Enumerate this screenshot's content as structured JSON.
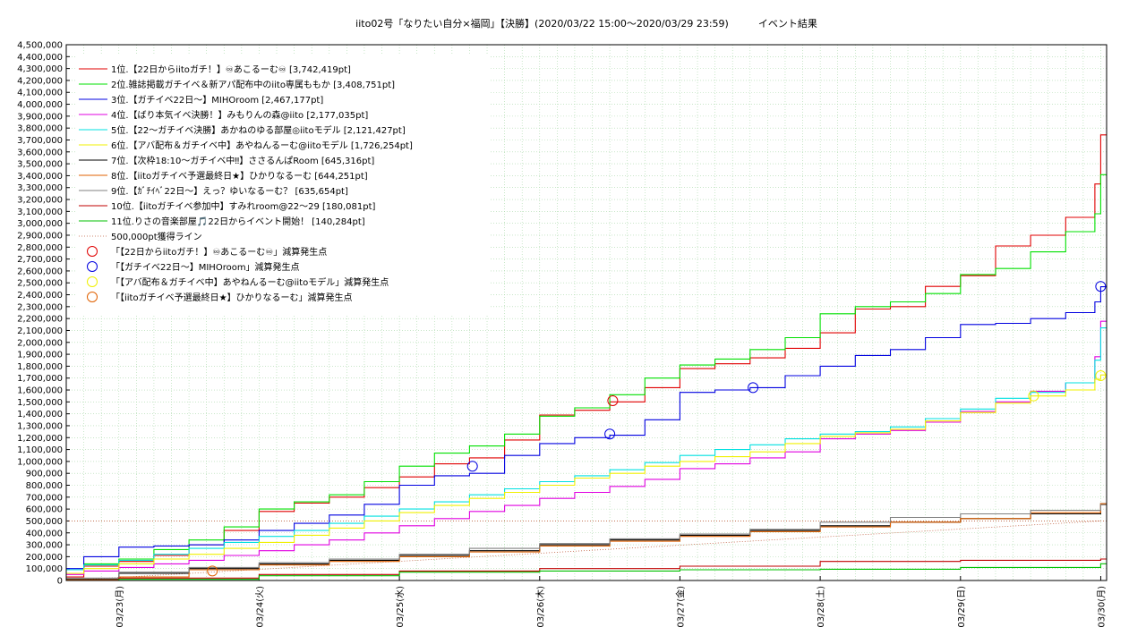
{
  "chart_data": {
    "type": "line",
    "title": "iito02号「なりたい自分×福岡」【決勝】(2020/03/22 15:00〜2020/03/29 23:59)　　　イベント結果",
    "xlabel": "",
    "ylabel": "",
    "ylim": [
      0,
      4500000
    ],
    "ytick_step": 100000,
    "yticks": [
      "0",
      "100,000",
      "200,000",
      "300,000",
      "400,000",
      "500,000",
      "600,000",
      "700,000",
      "800,000",
      "900,000",
      "1,000,000",
      "1,100,000",
      "1,200,000",
      "1,300,000",
      "1,400,000",
      "1,500,000",
      "1,600,000",
      "1,700,000",
      "1,800,000",
      "1,900,000",
      "2,000,000",
      "2,100,000",
      "2,200,000",
      "2,300,000",
      "2,400,000",
      "2,500,000",
      "2,600,000",
      "2,700,000",
      "2,800,000",
      "2,900,000",
      "3,000,000",
      "3,100,000",
      "3,200,000",
      "3,300,000",
      "3,400,000",
      "3,500,000",
      "3,600,000",
      "3,700,000",
      "3,800,000",
      "3,900,000",
      "4,000,000",
      "4,100,000",
      "4,200,000",
      "4,300,000",
      "4,400,000",
      "4,500,000"
    ],
    "xlim": [
      "2020-03-22T15:00",
      "2020-03-30T01:00"
    ],
    "xticks": [
      {
        "t": "2020-03-23T00:00",
        "label": "03/23(月)"
      },
      {
        "t": "2020-03-24T00:00",
        "label": "03/24(火)"
      },
      {
        "t": "2020-03-25T00:00",
        "label": "03/25(水)"
      },
      {
        "t": "2020-03-26T00:00",
        "label": "03/26(木)"
      },
      {
        "t": "2020-03-27T00:00",
        "label": "03/27(金)"
      },
      {
        "t": "2020-03-28T00:00",
        "label": "03/28(土)"
      },
      {
        "t": "2020-03-29T00:00",
        "label": "03/29(日)"
      },
      {
        "t": "2020-03-30T00:00",
        "label": "03/30(月)"
      }
    ],
    "grid": true,
    "legend_position": "top-left",
    "series": [
      {
        "name": "1位.【22日からiitoガチ！】♾あこるーむ♾ [3,742,419pt]",
        "color": "#e00000",
        "x": [
          "2020-03-22T15:00",
          "2020-03-22T18:00",
          "2020-03-23T00:00",
          "2020-03-23T06:00",
          "2020-03-23T12:00",
          "2020-03-23T18:00",
          "2020-03-24T00:00",
          "2020-03-24T06:00",
          "2020-03-24T12:00",
          "2020-03-24T18:00",
          "2020-03-25T00:00",
          "2020-03-25T06:00",
          "2020-03-25T12:00",
          "2020-03-25T18:00",
          "2020-03-26T00:00",
          "2020-03-26T06:00",
          "2020-03-26T12:00",
          "2020-03-26T18:00",
          "2020-03-27T00:00",
          "2020-03-27T06:00",
          "2020-03-27T12:00",
          "2020-03-27T18:00",
          "2020-03-28T00:00",
          "2020-03-28T06:00",
          "2020-03-28T12:00",
          "2020-03-28T18:00",
          "2020-03-29T00:00",
          "2020-03-29T06:00",
          "2020-03-29T12:00",
          "2020-03-29T18:00",
          "2020-03-29T23:00",
          "2020-03-29T23:59",
          "2020-03-30T01:00"
        ],
        "y": [
          30000,
          120000,
          160000,
          210000,
          300000,
          420000,
          580000,
          650000,
          700000,
          780000,
          870000,
          980000,
          1030000,
          1180000,
          1390000,
          1430000,
          1500000,
          1620000,
          1780000,
          1820000,
          1870000,
          1950000,
          2080000,
          2280000,
          2300000,
          2470000,
          2560000,
          2810000,
          2900000,
          3050000,
          3330000,
          3742419,
          3742419
        ]
      },
      {
        "name": "2位.雑誌掲載ガチイベ＆新アパ配布中のiito専属ももか [3,408,751pt]",
        "color": "#00e000",
        "x": [
          "2020-03-22T15:00",
          "2020-03-22T18:00",
          "2020-03-23T00:00",
          "2020-03-23T06:00",
          "2020-03-23T12:00",
          "2020-03-23T18:00",
          "2020-03-24T00:00",
          "2020-03-24T06:00",
          "2020-03-24T12:00",
          "2020-03-24T18:00",
          "2020-03-25T00:00",
          "2020-03-25T06:00",
          "2020-03-25T12:00",
          "2020-03-25T18:00",
          "2020-03-26T00:00",
          "2020-03-26T06:00",
          "2020-03-26T12:00",
          "2020-03-26T18:00",
          "2020-03-27T00:00",
          "2020-03-27T06:00",
          "2020-03-27T12:00",
          "2020-03-27T18:00",
          "2020-03-28T00:00",
          "2020-03-28T06:00",
          "2020-03-28T12:00",
          "2020-03-28T18:00",
          "2020-03-29T00:00",
          "2020-03-29T06:00",
          "2020-03-29T12:00",
          "2020-03-29T18:00",
          "2020-03-29T23:00",
          "2020-03-29T23:59",
          "2020-03-30T01:00"
        ],
        "y": [
          90000,
          140000,
          180000,
          260000,
          340000,
          450000,
          600000,
          660000,
          720000,
          830000,
          960000,
          1070000,
          1130000,
          1230000,
          1380000,
          1450000,
          1560000,
          1700000,
          1810000,
          1860000,
          1940000,
          2040000,
          2240000,
          2300000,
          2340000,
          2410000,
          2570000,
          2620000,
          2760000,
          2930000,
          3080000,
          3408751,
          3408751
        ]
      },
      {
        "name": "3位.【ガチイベ22日〜】MIHOroom [2,467,177pt]",
        "color": "#0000e0",
        "x": [
          "2020-03-22T15:00",
          "2020-03-22T18:00",
          "2020-03-23T00:00",
          "2020-03-23T06:00",
          "2020-03-23T12:00",
          "2020-03-23T18:00",
          "2020-03-24T00:00",
          "2020-03-24T06:00",
          "2020-03-24T12:00",
          "2020-03-24T18:00",
          "2020-03-25T00:00",
          "2020-03-25T06:00",
          "2020-03-25T12:00",
          "2020-03-25T18:00",
          "2020-03-26T00:00",
          "2020-03-26T06:00",
          "2020-03-26T12:00",
          "2020-03-26T18:00",
          "2020-03-27T00:00",
          "2020-03-27T06:00",
          "2020-03-27T12:00",
          "2020-03-27T18:00",
          "2020-03-28T00:00",
          "2020-03-28T06:00",
          "2020-03-28T12:00",
          "2020-03-28T18:00",
          "2020-03-29T00:00",
          "2020-03-29T06:00",
          "2020-03-29T12:00",
          "2020-03-29T18:00",
          "2020-03-29T23:00",
          "2020-03-29T23:59",
          "2020-03-30T01:00"
        ],
        "y": [
          100000,
          200000,
          280000,
          290000,
          300000,
          340000,
          420000,
          480000,
          550000,
          640000,
          800000,
          880000,
          900000,
          1050000,
          1150000,
          1200000,
          1220000,
          1350000,
          1580000,
          1600000,
          1620000,
          1720000,
          1800000,
          1890000,
          1940000,
          2040000,
          2150000,
          2160000,
          2200000,
          2250000,
          2340000,
          2467177,
          2467177
        ]
      },
      {
        "name": "4位.【ばり本気イベ決勝！】みもりんの森@iito [2,177,035pt]",
        "color": "#e000e0",
        "x": [
          "2020-03-22T15:00",
          "2020-03-22T18:00",
          "2020-03-23T00:00",
          "2020-03-23T06:00",
          "2020-03-23T12:00",
          "2020-03-23T18:00",
          "2020-03-24T00:00",
          "2020-03-24T06:00",
          "2020-03-24T12:00",
          "2020-03-24T18:00",
          "2020-03-25T00:00",
          "2020-03-25T06:00",
          "2020-03-25T12:00",
          "2020-03-25T18:00",
          "2020-03-26T00:00",
          "2020-03-26T06:00",
          "2020-03-26T12:00",
          "2020-03-26T18:00",
          "2020-03-27T00:00",
          "2020-03-27T06:00",
          "2020-03-27T12:00",
          "2020-03-27T18:00",
          "2020-03-28T00:00",
          "2020-03-28T06:00",
          "2020-03-28T12:00",
          "2020-03-28T18:00",
          "2020-03-29T00:00",
          "2020-03-29T06:00",
          "2020-03-29T12:00",
          "2020-03-29T18:00",
          "2020-03-29T23:00",
          "2020-03-29T23:59",
          "2020-03-30T01:00"
        ],
        "y": [
          50000,
          80000,
          110000,
          140000,
          170000,
          210000,
          250000,
          300000,
          340000,
          400000,
          460000,
          520000,
          580000,
          630000,
          690000,
          740000,
          790000,
          850000,
          940000,
          980000,
          1030000,
          1080000,
          1190000,
          1230000,
          1260000,
          1330000,
          1420000,
          1500000,
          1590000,
          1660000,
          1880000,
          2177035,
          2177035
        ]
      },
      {
        "name": "5位.【22〜ガチイベ決勝】あかねのゆる部屋◎iitoモデル [2,121,427pt]",
        "color": "#00e0e0",
        "x": [
          "2020-03-22T15:00",
          "2020-03-22T18:00",
          "2020-03-23T00:00",
          "2020-03-23T06:00",
          "2020-03-23T12:00",
          "2020-03-23T18:00",
          "2020-03-24T00:00",
          "2020-03-24T06:00",
          "2020-03-24T12:00",
          "2020-03-24T18:00",
          "2020-03-25T00:00",
          "2020-03-25T06:00",
          "2020-03-25T12:00",
          "2020-03-25T18:00",
          "2020-03-26T00:00",
          "2020-03-26T06:00",
          "2020-03-26T12:00",
          "2020-03-26T18:00",
          "2020-03-27T00:00",
          "2020-03-27T06:00",
          "2020-03-27T12:00",
          "2020-03-27T18:00",
          "2020-03-28T00:00",
          "2020-03-28T06:00",
          "2020-03-28T12:00",
          "2020-03-28T18:00",
          "2020-03-29T00:00",
          "2020-03-29T06:00",
          "2020-03-29T12:00",
          "2020-03-29T18:00",
          "2020-03-29T23:00",
          "2020-03-29T23:59",
          "2020-03-30T01:00"
        ],
        "y": [
          90000,
          130000,
          170000,
          220000,
          270000,
          320000,
          370000,
          420000,
          480000,
          540000,
          600000,
          660000,
          720000,
          770000,
          830000,
          880000,
          930000,
          990000,
          1050000,
          1100000,
          1140000,
          1190000,
          1230000,
          1250000,
          1290000,
          1360000,
          1440000,
          1530000,
          1580000,
          1660000,
          1850000,
          2121427,
          2121427
        ]
      },
      {
        "name": "6位.【アバ配布＆ガチイベ中】あやねんるーむ@iitoモデル [1,726,254pt]",
        "color": "#f0f000",
        "x": [
          "2020-03-22T15:00",
          "2020-03-22T18:00",
          "2020-03-23T00:00",
          "2020-03-23T06:00",
          "2020-03-23T12:00",
          "2020-03-23T18:00",
          "2020-03-24T00:00",
          "2020-03-24T06:00",
          "2020-03-24T12:00",
          "2020-03-24T18:00",
          "2020-03-25T00:00",
          "2020-03-25T06:00",
          "2020-03-25T12:00",
          "2020-03-25T18:00",
          "2020-03-26T00:00",
          "2020-03-26T06:00",
          "2020-03-26T12:00",
          "2020-03-26T18:00",
          "2020-03-27T00:00",
          "2020-03-27T06:00",
          "2020-03-27T12:00",
          "2020-03-27T18:00",
          "2020-03-28T00:00",
          "2020-03-28T06:00",
          "2020-03-28T12:00",
          "2020-03-28T18:00",
          "2020-03-29T00:00",
          "2020-03-29T06:00",
          "2020-03-29T12:00",
          "2020-03-29T18:00",
          "2020-03-29T23:00",
          "2020-03-29T23:59",
          "2020-03-30T01:00"
        ],
        "y": [
          60000,
          100000,
          140000,
          180000,
          220000,
          270000,
          320000,
          380000,
          440000,
          500000,
          570000,
          630000,
          690000,
          740000,
          800000,
          860000,
          900000,
          960000,
          1000000,
          1040000,
          1080000,
          1150000,
          1210000,
          1240000,
          1270000,
          1340000,
          1410000,
          1490000,
          1550000,
          1600000,
          1690000,
          1726254,
          1726254
        ]
      },
      {
        "name": "7位.【次枠18:10〜ガチイベ中‼】ささるんぱRoom [645,316pt]",
        "color": "#000000",
        "x": [
          "2020-03-22T15:00",
          "2020-03-23T00:00",
          "2020-03-23T12:00",
          "2020-03-24T00:00",
          "2020-03-24T12:00",
          "2020-03-25T00:00",
          "2020-03-25T12:00",
          "2020-03-26T00:00",
          "2020-03-26T12:00",
          "2020-03-27T00:00",
          "2020-03-27T12:00",
          "2020-03-28T00:00",
          "2020-03-28T12:00",
          "2020-03-29T00:00",
          "2020-03-29T12:00",
          "2020-03-29T23:59",
          "2020-03-30T01:00"
        ],
        "y": [
          10000,
          60000,
          100000,
          140000,
          170000,
          210000,
          250000,
          300000,
          340000,
          380000,
          420000,
          460000,
          490000,
          520000,
          560000,
          645316,
          645316
        ]
      },
      {
        "name": "8位.【iitoガチイベ予選最終日★】ひかりなるーむ [644,251pt]",
        "color": "#e06000",
        "x": [
          "2020-03-22T15:00",
          "2020-03-23T00:00",
          "2020-03-23T12:00",
          "2020-03-24T00:00",
          "2020-03-24T12:00",
          "2020-03-25T00:00",
          "2020-03-25T12:00",
          "2020-03-26T00:00",
          "2020-03-26T12:00",
          "2020-03-27T00:00",
          "2020-03-27T12:00",
          "2020-03-28T00:00",
          "2020-03-28T12:00",
          "2020-03-29T00:00",
          "2020-03-29T12:00",
          "2020-03-29T23:59",
          "2020-03-30T01:00"
        ],
        "y": [
          5000,
          30000,
          90000,
          130000,
          160000,
          200000,
          240000,
          290000,
          330000,
          370000,
          410000,
          450000,
          490000,
          520000,
          570000,
          644251,
          644251
        ]
      },
      {
        "name": "9位.【ｶﾞﾁｲﾍﾞ22日〜】えっ？ゆいなるーむ？ [635,654pt]",
        "color": "#808080",
        "x": [
          "2020-03-22T15:00",
          "2020-03-23T00:00",
          "2020-03-23T12:00",
          "2020-03-24T00:00",
          "2020-03-24T12:00",
          "2020-03-25T00:00",
          "2020-03-25T12:00",
          "2020-03-26T00:00",
          "2020-03-26T12:00",
          "2020-03-27T00:00",
          "2020-03-27T12:00",
          "2020-03-28T00:00",
          "2020-03-28T12:00",
          "2020-03-29T00:00",
          "2020-03-29T12:00",
          "2020-03-29T23:59",
          "2020-03-30T01:00"
        ],
        "y": [
          20000,
          70000,
          110000,
          150000,
          180000,
          220000,
          270000,
          310000,
          350000,
          390000,
          430000,
          490000,
          530000,
          560000,
          590000,
          635654,
          635654
        ]
      },
      {
        "name": "10位.【iitoガチイベ参加中】すみれroom@22〜29 [180,081pt]",
        "color": "#c00000",
        "x": [
          "2020-03-22T15:00",
          "2020-03-23T00:00",
          "2020-03-24T00:00",
          "2020-03-25T00:00",
          "2020-03-26T00:00",
          "2020-03-27T00:00",
          "2020-03-28T00:00",
          "2020-03-29T00:00",
          "2020-03-29T23:59",
          "2020-03-30T01:00"
        ],
        "y": [
          0,
          20000,
          50000,
          80000,
          100000,
          120000,
          160000,
          170000,
          180081,
          180081
        ]
      },
      {
        "name": "11位.りさの音楽部屋🎵22日からイベント開始！ [140,284pt]",
        "color": "#00c000",
        "x": [
          "2020-03-22T15:00",
          "2020-03-23T00:00",
          "2020-03-24T00:00",
          "2020-03-25T00:00",
          "2020-03-26T00:00",
          "2020-03-27T00:00",
          "2020-03-28T00:00",
          "2020-03-29T00:00",
          "2020-03-29T23:59",
          "2020-03-30T01:00"
        ],
        "y": [
          0,
          10000,
          40000,
          70000,
          80000,
          90000,
          95000,
          110000,
          140284,
          140284
        ]
      }
    ],
    "reference_line": {
      "name": "500,000pt獲得ライン",
      "value": 500000,
      "color": "#c06040"
    },
    "markers": [
      {
        "name": "「【22日からiitoガチ！】♾あこるーむ♾」減算発生点",
        "color": "#e00000",
        "points": [
          {
            "x": "2020-03-26T12:30",
            "y": 1510000
          }
        ]
      },
      {
        "name": "「【ガチイベ22日〜】MIHOroom」減算発生点",
        "color": "#0000e0",
        "points": [
          {
            "x": "2020-03-25T12:30",
            "y": 960000
          },
          {
            "x": "2020-03-26T12:00",
            "y": 1230000
          },
          {
            "x": "2020-03-27T12:30",
            "y": 1620000
          },
          {
            "x": "2020-03-29T23:59",
            "y": 2470000
          }
        ]
      },
      {
        "name": "「【アバ配布＆ガチイベ中】あやねんるーむ@iitoモデル」減算発生点",
        "color": "#f0f000",
        "points": [
          {
            "x": "2020-03-29T12:30",
            "y": 1550000
          },
          {
            "x": "2020-03-29T23:59",
            "y": 1720000
          }
        ]
      },
      {
        "name": "「【iitoガチイベ予選最終日★】ひかりなるーむ」減算発生点",
        "color": "#e06000",
        "points": [
          {
            "x": "2020-03-23T16:00",
            "y": 80000
          }
        ]
      }
    ]
  }
}
